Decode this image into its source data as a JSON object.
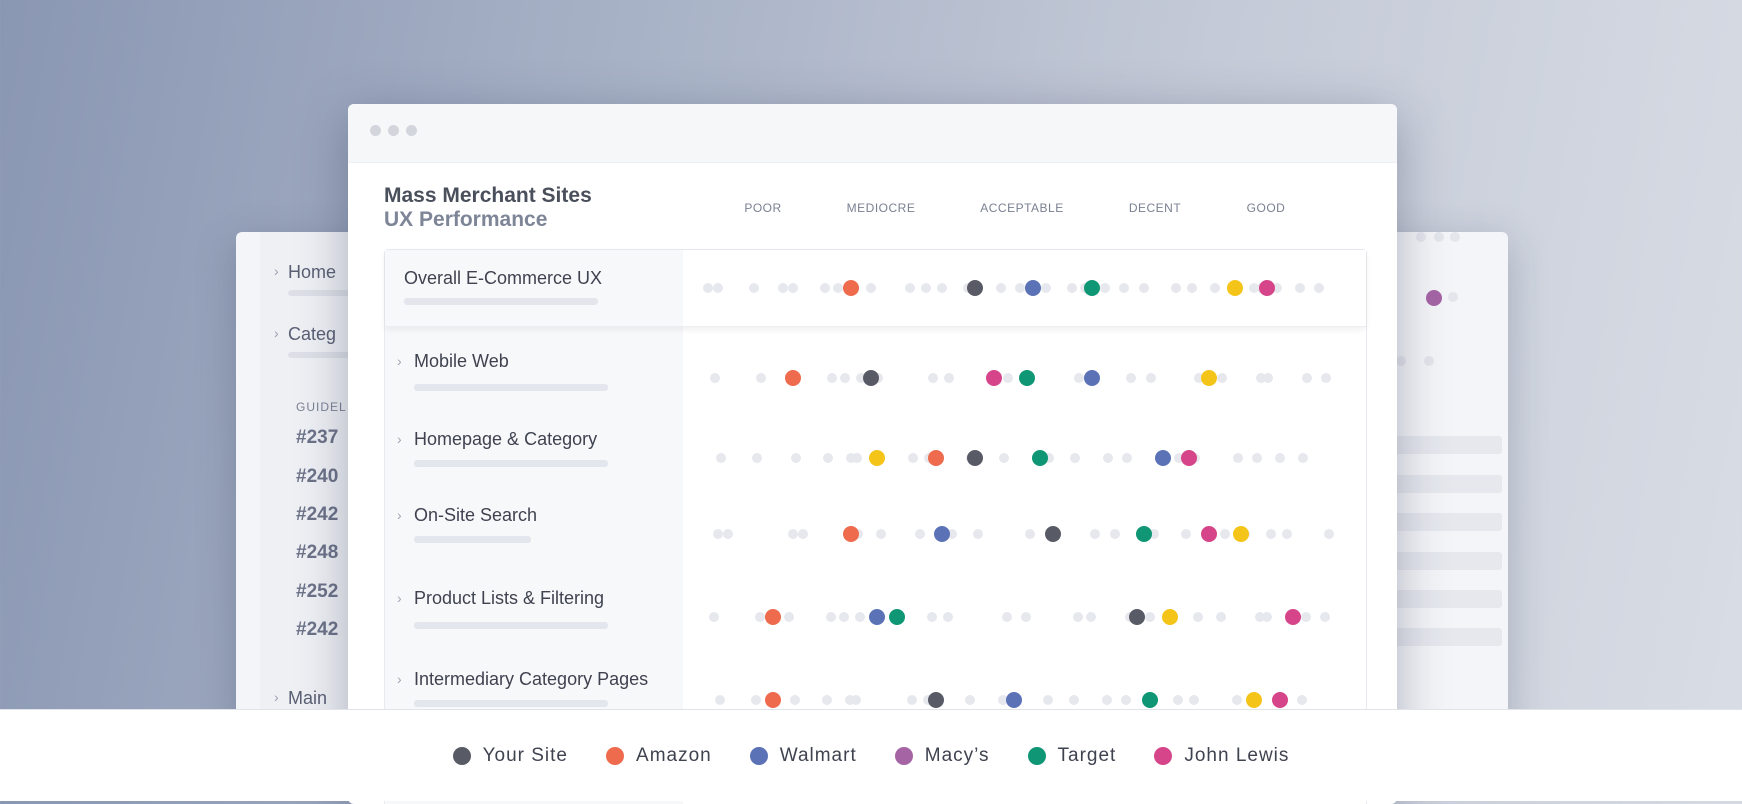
{
  "colors": {
    "your_site": "#585b66",
    "amazon": "#ee6b4d",
    "walmart": "#5b72b7",
    "macys": "#a565a5",
    "target": "#0f9674",
    "john_lewis": "#d64589",
    "grey_dot": "#e6e8ee"
  },
  "background_window": {
    "nav": [
      {
        "label": "Home"
      },
      {
        "label": "Categ"
      },
      {
        "label": "Main"
      }
    ],
    "guidelines_label": "GUIDEL",
    "guideline_codes": [
      "#237",
      "#240",
      "#242",
      "#248",
      "#252",
      "#242"
    ]
  },
  "window": {
    "title": "Mass Merchant Sites",
    "subtitle": "UX Performance",
    "controls": [
      "close-dot",
      "minimize-dot",
      "maximize-dot"
    ]
  },
  "scale": {
    "categories": [
      "POOR",
      "MEDIOCRE",
      "ACCEPTABLE",
      "DECENT",
      "GOOD"
    ]
  },
  "rows": [
    {
      "label": "Overall E-Commerce UX",
      "expandable": false,
      "scores": {
        "amazon": 0.24,
        "your_site": 0.43,
        "walmart": 0.52,
        "target": 0.61,
        "macys": null,
        "john_lewis": 0.88,
        "gold": 0.83
      }
    },
    {
      "label": "Mobile Web",
      "expandable": true,
      "scores": {
        "amazon": 0.15,
        "your_site": 0.27,
        "john_lewis": 0.46,
        "target": 0.51,
        "walmart": 0.61,
        "gold": 0.79
      }
    },
    {
      "label": "Homepage & Category",
      "expandable": true,
      "scores": {
        "gold": 0.28,
        "amazon": 0.37,
        "your_site": 0.43,
        "target": 0.53,
        "walmart": 0.72,
        "john_lewis": 0.76
      }
    },
    {
      "label": "On-Site Search",
      "expandable": true,
      "scores": {
        "amazon": 0.24,
        "walmart": 0.38,
        "your_site": 0.55,
        "target": 0.69,
        "john_lewis": 0.79,
        "gold": 0.84
      }
    },
    {
      "label": "Product Lists & Filtering",
      "expandable": true,
      "scores": {
        "amazon": 0.12,
        "walmart": 0.28,
        "target": 0.31,
        "your_site": 0.68,
        "gold": 0.73,
        "john_lewis": 0.92
      }
    },
    {
      "label": "Intermediary Category Pages",
      "expandable": true,
      "scores": {
        "amazon": 0.12,
        "your_site": 0.37,
        "walmart": 0.49,
        "target": 0.7,
        "gold": 0.86,
        "john_lewis": 0.9
      }
    }
  ],
  "legend": [
    {
      "key": "your_site",
      "label": "Your Site"
    },
    {
      "key": "amazon",
      "label": "Amazon"
    },
    {
      "key": "walmart",
      "label": "Walmart"
    },
    {
      "key": "macys",
      "label": "Macy’s"
    },
    {
      "key": "target",
      "label": "Target"
    },
    {
      "key": "john_lewis",
      "label": "John Lewis"
    }
  ]
}
